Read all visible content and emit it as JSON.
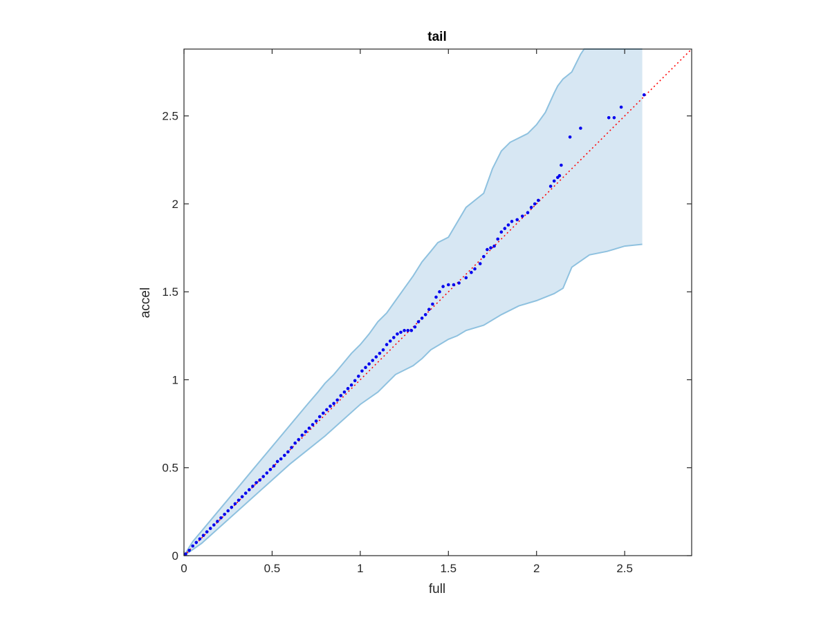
{
  "chart_data": {
    "type": "scatter",
    "title": "tail",
    "xlabel": "full",
    "ylabel": "accel",
    "xlim": [
      0,
      2.88
    ],
    "ylim": [
      0,
      2.88
    ],
    "xticks": [
      0,
      0.5,
      1,
      1.5,
      2,
      2.5
    ],
    "yticks": [
      0,
      0.5,
      1,
      1.5,
      2,
      2.5
    ],
    "xtick_labels": [
      "0",
      "0.5",
      "1",
      "1.5",
      "2",
      "2.5"
    ],
    "ytick_labels": [
      "0",
      "0.5",
      "1",
      "1.5",
      "2",
      "2.5"
    ],
    "grid": false,
    "legend": null,
    "reference_line": {
      "x": [
        0,
        2.88
      ],
      "y": [
        0,
        2.88
      ],
      "style": "dotted",
      "color": "#ff0000"
    },
    "band": {
      "color": "#d7e7f3",
      "edge_color": "#8ec1df",
      "upper": [
        [
          0,
          0
        ],
        [
          0.05,
          0.08
        ],
        [
          0.1,
          0.14
        ],
        [
          0.2,
          0.26
        ],
        [
          0.3,
          0.38
        ],
        [
          0.4,
          0.5
        ],
        [
          0.5,
          0.62
        ],
        [
          0.6,
          0.74
        ],
        [
          0.7,
          0.86
        ],
        [
          0.76,
          0.93
        ],
        [
          0.8,
          0.98
        ],
        [
          0.85,
          1.03
        ],
        [
          0.9,
          1.09
        ],
        [
          0.95,
          1.15
        ],
        [
          1.0,
          1.2
        ],
        [
          1.05,
          1.26
        ],
        [
          1.1,
          1.33
        ],
        [
          1.15,
          1.38
        ],
        [
          1.2,
          1.45
        ],
        [
          1.25,
          1.52
        ],
        [
          1.3,
          1.59
        ],
        [
          1.35,
          1.67
        ],
        [
          1.4,
          1.73
        ],
        [
          1.44,
          1.78
        ],
        [
          1.5,
          1.81
        ],
        [
          1.6,
          1.98
        ],
        [
          1.7,
          2.06
        ],
        [
          1.75,
          2.2
        ],
        [
          1.8,
          2.3
        ],
        [
          1.85,
          2.35
        ],
        [
          1.95,
          2.4
        ],
        [
          2.0,
          2.45
        ],
        [
          2.05,
          2.52
        ],
        [
          2.1,
          2.63
        ],
        [
          2.12,
          2.67
        ],
        [
          2.15,
          2.71
        ],
        [
          2.2,
          2.75
        ],
        [
          2.25,
          2.85
        ],
        [
          2.27,
          2.88
        ],
        [
          2.6,
          2.88
        ]
      ],
      "lower": [
        [
          0,
          0
        ],
        [
          0.1,
          0.07
        ],
        [
          0.2,
          0.16
        ],
        [
          0.3,
          0.25
        ],
        [
          0.4,
          0.34
        ],
        [
          0.5,
          0.43
        ],
        [
          0.6,
          0.52
        ],
        [
          0.7,
          0.6
        ],
        [
          0.8,
          0.68
        ],
        [
          0.9,
          0.77
        ],
        [
          1.0,
          0.86
        ],
        [
          1.1,
          0.93
        ],
        [
          1.2,
          1.03
        ],
        [
          1.3,
          1.08
        ],
        [
          1.35,
          1.12
        ],
        [
          1.4,
          1.17
        ],
        [
          1.45,
          1.2
        ],
        [
          1.5,
          1.23
        ],
        [
          1.55,
          1.25
        ],
        [
          1.6,
          1.28
        ],
        [
          1.7,
          1.31
        ],
        [
          1.8,
          1.37
        ],
        [
          1.9,
          1.42
        ],
        [
          2.0,
          1.45
        ],
        [
          2.1,
          1.49
        ],
        [
          2.15,
          1.52
        ],
        [
          2.2,
          1.64
        ],
        [
          2.3,
          1.71
        ],
        [
          2.4,
          1.73
        ],
        [
          2.5,
          1.76
        ],
        [
          2.6,
          1.77
        ]
      ]
    },
    "series": [
      {
        "color": "#0000ee",
        "x": [
          0.01,
          0.03,
          0.05,
          0.07,
          0.09,
          0.11,
          0.13,
          0.15,
          0.17,
          0.19,
          0.21,
          0.23,
          0.25,
          0.27,
          0.29,
          0.31,
          0.33,
          0.35,
          0.37,
          0.39,
          0.41,
          0.43,
          0.45,
          0.47,
          0.49,
          0.51,
          0.53,
          0.55,
          0.57,
          0.59,
          0.61,
          0.63,
          0.65,
          0.67,
          0.69,
          0.71,
          0.73,
          0.75,
          0.77,
          0.79,
          0.81,
          0.83,
          0.85,
          0.87,
          0.89,
          0.91,
          0.93,
          0.95,
          0.97,
          0.99,
          1.01,
          1.03,
          1.05,
          1.07,
          1.09,
          1.11,
          1.13,
          1.15,
          1.17,
          1.19,
          1.21,
          1.23,
          1.25,
          1.27,
          1.29,
          1.31,
          1.33,
          1.35,
          1.37,
          1.39,
          1.41,
          1.43,
          1.45,
          1.47,
          1.5,
          1.53,
          1.56,
          1.6,
          1.63,
          1.65,
          1.68,
          1.7,
          1.72,
          1.74,
          1.76,
          1.78,
          1.8,
          1.82,
          1.84,
          1.86,
          1.89,
          1.92,
          1.95,
          1.97,
          1.99,
          2.01,
          2.08,
          2.1,
          2.12,
          2.13,
          2.14,
          2.19,
          2.25,
          2.41,
          2.44,
          2.48,
          2.61
        ],
        "y": [
          0.01,
          0.03,
          0.055,
          0.075,
          0.095,
          0.115,
          0.135,
          0.155,
          0.175,
          0.195,
          0.215,
          0.235,
          0.255,
          0.275,
          0.295,
          0.315,
          0.335,
          0.355,
          0.375,
          0.395,
          0.415,
          0.43,
          0.45,
          0.47,
          0.49,
          0.51,
          0.535,
          0.55,
          0.57,
          0.59,
          0.615,
          0.64,
          0.66,
          0.685,
          0.705,
          0.725,
          0.745,
          0.765,
          0.79,
          0.81,
          0.83,
          0.85,
          0.865,
          0.885,
          0.91,
          0.93,
          0.95,
          0.97,
          0.995,
          1.02,
          1.05,
          1.07,
          1.09,
          1.11,
          1.13,
          1.15,
          1.17,
          1.2,
          1.22,
          1.24,
          1.26,
          1.27,
          1.28,
          1.28,
          1.28,
          1.3,
          1.33,
          1.35,
          1.37,
          1.4,
          1.43,
          1.47,
          1.5,
          1.53,
          1.54,
          1.54,
          1.55,
          1.58,
          1.61,
          1.63,
          1.66,
          1.7,
          1.74,
          1.75,
          1.76,
          1.8,
          1.84,
          1.86,
          1.88,
          1.9,
          1.91,
          1.93,
          1.95,
          1.98,
          2.0,
          2.02,
          2.1,
          2.13,
          2.15,
          2.16,
          2.22,
          2.38,
          2.43,
          2.49,
          2.49,
          2.55,
          2.62
        ]
      }
    ]
  }
}
